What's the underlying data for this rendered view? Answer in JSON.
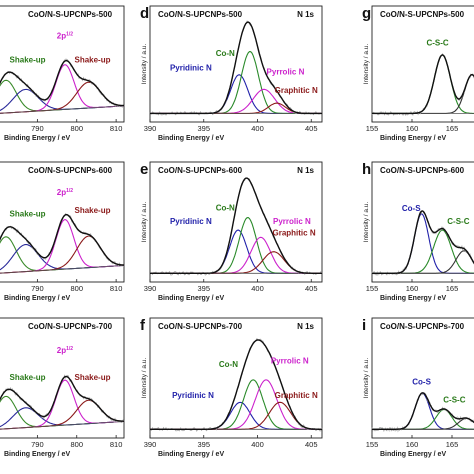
{
  "chart_data": [
    {
      "id": "a",
      "letter": "",
      "type": "line",
      "title": "CoO/N-S-UPCNPs-500",
      "region": "",
      "xlabel": "Binding Energy / eV",
      "ylabel": "",
      "xlim": [
        780,
        812
      ],
      "ticks": [
        790,
        800,
        810
      ],
      "visible_x_start": 780,
      "peaks": [
        {
          "c": 782,
          "h": 0.38,
          "w": 2.6,
          "color": "#3a8a2a"
        },
        {
          "c": 787,
          "h": 0.26,
          "w": 3.2,
          "color": "#2a2a9a"
        },
        {
          "c": 797,
          "h": 0.52,
          "w": 2.3,
          "color": "#cc22cc"
        },
        {
          "c": 803,
          "h": 0.3,
          "w": 3.0,
          "color": "#8b1a1a"
        }
      ],
      "baseline_slope": 0.35,
      "labels": [
        {
          "text": "Shake-up",
          "x": 787.5,
          "y": 0.62,
          "color": "#2a7a1a"
        },
        {
          "text": "2p",
          "sup": "1/2",
          "x": 797,
          "y": 0.9,
          "color": "#cc22cc"
        },
        {
          "text": "Shake-up",
          "x": 804,
          "y": 0.62,
          "color": "#8b1a1a"
        }
      ]
    },
    {
      "id": "d",
      "letter": "d",
      "type": "line",
      "title": "CoO/N-S-UPCNPs-500",
      "region": "N 1s",
      "xlabel": "Binding Energy / eV",
      "ylabel": "Intensity / a.u.",
      "xlim": [
        390,
        406
      ],
      "ticks": [
        390,
        395,
        400,
        405
      ],
      "visible_x_start": 390,
      "peaks": [
        {
          "c": 398.3,
          "h": 0.45,
          "w": 0.8,
          "color": "#2222aa"
        },
        {
          "c": 399.3,
          "h": 0.72,
          "w": 0.8,
          "color": "#2a8a2a"
        },
        {
          "c": 400.6,
          "h": 0.28,
          "w": 1.0,
          "color": "#cc22cc"
        },
        {
          "c": 401.8,
          "h": 0.12,
          "w": 0.8,
          "color": "#8b1a1a"
        }
      ],
      "baseline_slope": 0.0,
      "labels": [
        {
          "text": "Co-N",
          "x": 397.0,
          "y": 0.7,
          "color": "#2a7a1a"
        },
        {
          "text": "Pyridinic N",
          "x": 393.8,
          "y": 0.53,
          "color": "#2222aa"
        },
        {
          "text": "Pyrrolic N",
          "x": 402.6,
          "y": 0.48,
          "color": "#cc22cc"
        },
        {
          "text": "Graphitic N",
          "x": 403.6,
          "y": 0.27,
          "color": "#8b1a1a"
        }
      ]
    },
    {
      "id": "g",
      "letter": "g",
      "type": "line",
      "title": "CoO/N-S-UPCNPs-500",
      "region": "",
      "xlabel": "Binding Energy / eV",
      "ylabel": "Intensity / a.u.",
      "xlim": [
        155,
        168
      ],
      "ticks": [
        155,
        160,
        165
      ],
      "visible_x_start": 155,
      "peaks": [
        {
          "c": 163.8,
          "h": 0.68,
          "w": 1.0,
          "color": "#2a8a2a"
        },
        {
          "c": 167.5,
          "h": 0.45,
          "w": 0.9,
          "color": "#333333"
        }
      ],
      "baseline_slope": 0.0,
      "labels": [
        {
          "text": "C-S-C",
          "x": 163.2,
          "y": 0.82,
          "color": "#2a7a1a"
        }
      ]
    },
    {
      "id": "b",
      "letter": "",
      "type": "line",
      "title": "CoO/N-S-UPCNPs-600",
      "region": "",
      "xlabel": "Binding Energy / eV",
      "ylabel": "",
      "xlim": [
        780,
        812
      ],
      "ticks": [
        790,
        800,
        810
      ],
      "visible_x_start": 780,
      "peaks": [
        {
          "c": 782,
          "h": 0.4,
          "w": 2.6,
          "color": "#3a8a2a"
        },
        {
          "c": 787,
          "h": 0.3,
          "w": 3.2,
          "color": "#2a2a9a"
        },
        {
          "c": 797,
          "h": 0.55,
          "w": 2.3,
          "color": "#cc22cc"
        },
        {
          "c": 803,
          "h": 0.35,
          "w": 3.0,
          "color": "#8b1a1a"
        }
      ],
      "baseline_slope": 0.35,
      "labels": [
        {
          "text": "Shake-up",
          "x": 787.5,
          "y": 0.66,
          "color": "#2a7a1a"
        },
        {
          "text": "2p",
          "sup": "1/2",
          "x": 797,
          "y": 0.9,
          "color": "#cc22cc"
        },
        {
          "text": "Shake-up",
          "x": 804,
          "y": 0.7,
          "color": "#8b1a1a"
        }
      ]
    },
    {
      "id": "e",
      "letter": "e",
      "type": "line",
      "title": "CoO/N-S-UPCNPs-600",
      "region": "N 1s",
      "xlabel": "Binding Energy / eV",
      "ylabel": "Intensity / a.u.",
      "xlim": [
        390,
        406
      ],
      "ticks": [
        390,
        395,
        400,
        405
      ],
      "visible_x_start": 390,
      "peaks": [
        {
          "c": 398.2,
          "h": 0.48,
          "w": 0.8,
          "color": "#2222aa"
        },
        {
          "c": 399.1,
          "h": 0.62,
          "w": 0.8,
          "color": "#2a8a2a"
        },
        {
          "c": 400.3,
          "h": 0.4,
          "w": 0.9,
          "color": "#cc22cc"
        },
        {
          "c": 401.5,
          "h": 0.24,
          "w": 1.0,
          "color": "#8b1a1a"
        }
      ],
      "baseline_slope": 0.0,
      "labels": [
        {
          "text": "Co-N",
          "x": 397.0,
          "y": 0.73,
          "color": "#2a7a1a"
        },
        {
          "text": "Pyridinic N",
          "x": 393.8,
          "y": 0.58,
          "color": "#2222aa"
        },
        {
          "text": "Pyrrolic N",
          "x": 403.2,
          "y": 0.58,
          "color": "#cc22cc"
        },
        {
          "text": "Graphitic N",
          "x": 403.4,
          "y": 0.45,
          "color": "#8b1a1a"
        }
      ]
    },
    {
      "id": "h",
      "letter": "h",
      "type": "line",
      "title": "CoO/N-S-UPCNPs-600",
      "region": "",
      "xlabel": "Binding Energy / eV",
      "ylabel": "Intensity / a.u.",
      "xlim": [
        155,
        168
      ],
      "ticks": [
        155,
        160,
        165
      ],
      "visible_x_start": 155,
      "peaks": [
        {
          "c": 161.2,
          "h": 0.66,
          "w": 0.9,
          "color": "#2222aa"
        },
        {
          "c": 163.8,
          "h": 0.48,
          "w": 1.1,
          "color": "#2a8a2a"
        },
        {
          "c": 166.5,
          "h": 0.25,
          "w": 1.0,
          "color": "#333333"
        }
      ],
      "baseline_slope": 0.0,
      "labels": [
        {
          "text": "Co-S",
          "x": 159.9,
          "y": 0.72,
          "color": "#2222aa"
        },
        {
          "text": "C-S-C",
          "x": 165.8,
          "y": 0.58,
          "color": "#2a7a1a"
        }
      ]
    },
    {
      "id": "c",
      "letter": "",
      "type": "line",
      "title": "CoO/N-S-UPCNPs-700",
      "region": "",
      "xlabel": "Binding Energy / eV",
      "ylabel": "",
      "xlim": [
        780,
        812
      ],
      "ticks": [
        790,
        800,
        810
      ],
      "visible_x_start": 780,
      "peaks": [
        {
          "c": 782,
          "h": 0.36,
          "w": 2.6,
          "color": "#3a8a2a"
        },
        {
          "c": 787,
          "h": 0.22,
          "w": 3.2,
          "color": "#2a2a9a"
        },
        {
          "c": 797,
          "h": 0.5,
          "w": 2.3,
          "color": "#cc22cc"
        },
        {
          "c": 803,
          "h": 0.26,
          "w": 3.0,
          "color": "#8b1a1a"
        }
      ],
      "baseline_slope": 0.35,
      "labels": [
        {
          "text": "Shake-up",
          "x": 787.5,
          "y": 0.58,
          "color": "#2a7a1a"
        },
        {
          "text": "2p",
          "sup": "1/2",
          "x": 797,
          "y": 0.88,
          "color": "#cc22cc"
        },
        {
          "text": "Shake-up",
          "x": 804,
          "y": 0.58,
          "color": "#8b1a1a"
        }
      ]
    },
    {
      "id": "f",
      "letter": "f",
      "type": "line",
      "title": "CoO/N-S-UPCNPs-700",
      "region": "N 1s",
      "xlabel": "Binding Energy / eV",
      "ylabel": "Intensity / a.u.",
      "xlim": [
        390,
        406
      ],
      "ticks": [
        390,
        395,
        400,
        405
      ],
      "visible_x_start": 390,
      "peaks": [
        {
          "c": 398.4,
          "h": 0.3,
          "w": 0.9,
          "color": "#2222aa"
        },
        {
          "c": 399.6,
          "h": 0.55,
          "w": 0.9,
          "color": "#2a8a2a"
        },
        {
          "c": 400.8,
          "h": 0.55,
          "w": 1.0,
          "color": "#cc22cc"
        },
        {
          "c": 402.1,
          "h": 0.3,
          "w": 1.0,
          "color": "#8b1a1a"
        }
      ],
      "baseline_slope": 0.0,
      "labels": [
        {
          "text": "Co-N",
          "x": 397.3,
          "y": 0.72,
          "color": "#2a7a1a"
        },
        {
          "text": "Pyrrolic N",
          "x": 403.0,
          "y": 0.76,
          "color": "#cc22cc"
        },
        {
          "text": "Pyridinic N",
          "x": 394.0,
          "y": 0.38,
          "color": "#2222aa"
        },
        {
          "text": "Graphitic N",
          "x": 403.6,
          "y": 0.38,
          "color": "#8b1a1a"
        }
      ]
    },
    {
      "id": "i",
      "letter": "i",
      "type": "line",
      "title": "CoO/N-S-UPCNPs-700",
      "region": "",
      "xlabel": "Binding Energy / eV",
      "ylabel": "Intensity / a.u.",
      "xlim": [
        155,
        168
      ],
      "ticks": [
        155,
        160,
        165
      ],
      "visible_x_start": 155,
      "peaks": [
        {
          "c": 161.3,
          "h": 0.4,
          "w": 0.9,
          "color": "#2222aa"
        },
        {
          "c": 164.0,
          "h": 0.22,
          "w": 1.0,
          "color": "#2a8a2a"
        },
        {
          "c": 166.8,
          "h": 0.12,
          "w": 1.0,
          "color": "#333333"
        }
      ],
      "baseline_slope": 0.0,
      "labels": [
        {
          "text": "Co-S",
          "x": 161.2,
          "y": 0.53,
          "color": "#2222aa"
        },
        {
          "text": "C-S-C",
          "x": 165.3,
          "y": 0.33,
          "color": "#2a7a1a"
        }
      ]
    }
  ]
}
